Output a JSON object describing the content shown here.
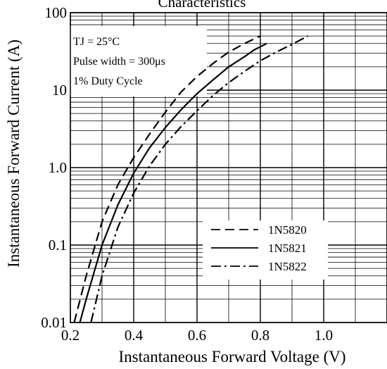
{
  "chart_data": {
    "type": "line",
    "title": "Characteristics",
    "xlabel": "Instantaneous Forward Voltage (V)",
    "ylabel": "Instantaneous Forward Current (A)",
    "xlim": [
      0.2,
      1.2
    ],
    "ylim": [
      0.01,
      100
    ],
    "y_scale": "log",
    "grid": true,
    "x_ticks": [
      {
        "value": 0.2,
        "label": "0.2"
      },
      {
        "value": 0.4,
        "label": "0.4"
      },
      {
        "value": 0.6,
        "label": "0.6"
      },
      {
        "value": 0.8,
        "label": "0.8"
      },
      {
        "value": 1.0,
        "label": "1.0"
      }
    ],
    "y_ticks": [
      {
        "value": 0.01,
        "label": "0.01"
      },
      {
        "value": 0.1,
        "label": "0.1"
      },
      {
        "value": 1,
        "label": "1.0"
      },
      {
        "value": 10,
        "label": "10"
      },
      {
        "value": 100,
        "label": "100"
      }
    ],
    "annotations": [
      "TJ = 25°C",
      "Pulse width = 300μs",
      "1% Duty Cycle"
    ],
    "legend_position": "bottom-right",
    "series": [
      {
        "name": "1N5820",
        "style": "dashed",
        "color": "#000000",
        "x": [
          0.212,
          0.25,
          0.3,
          0.35,
          0.4,
          0.45,
          0.5,
          0.55,
          0.6,
          0.65,
          0.7,
          0.75,
          0.8
        ],
        "y": [
          0.01,
          0.04,
          0.2,
          0.6,
          1.35,
          2.7,
          5.2,
          9.5,
          15,
          22,
          31,
          40,
          50
        ]
      },
      {
        "name": "1N5821",
        "style": "solid",
        "color": "#000000",
        "x": [
          0.23,
          0.25,
          0.3,
          0.35,
          0.4,
          0.45,
          0.5,
          0.55,
          0.6,
          0.65,
          0.7,
          0.75,
          0.78,
          0.82
        ],
        "y": [
          0.01,
          0.02,
          0.1,
          0.33,
          0.85,
          1.8,
          3.3,
          5.6,
          9,
          13.5,
          20,
          27,
          33,
          40
        ]
      },
      {
        "name": "1N5822",
        "style": "dashdot",
        "color": "#000000",
        "x": [
          0.265,
          0.3,
          0.35,
          0.4,
          0.45,
          0.5,
          0.55,
          0.6,
          0.65,
          0.7,
          0.75,
          0.8,
          0.85,
          0.9,
          0.95
        ],
        "y": [
          0.01,
          0.04,
          0.17,
          0.47,
          1.05,
          2.0,
          3.4,
          5.4,
          8.5,
          12.5,
          17.5,
          24,
          31,
          39,
          50
        ]
      }
    ]
  }
}
